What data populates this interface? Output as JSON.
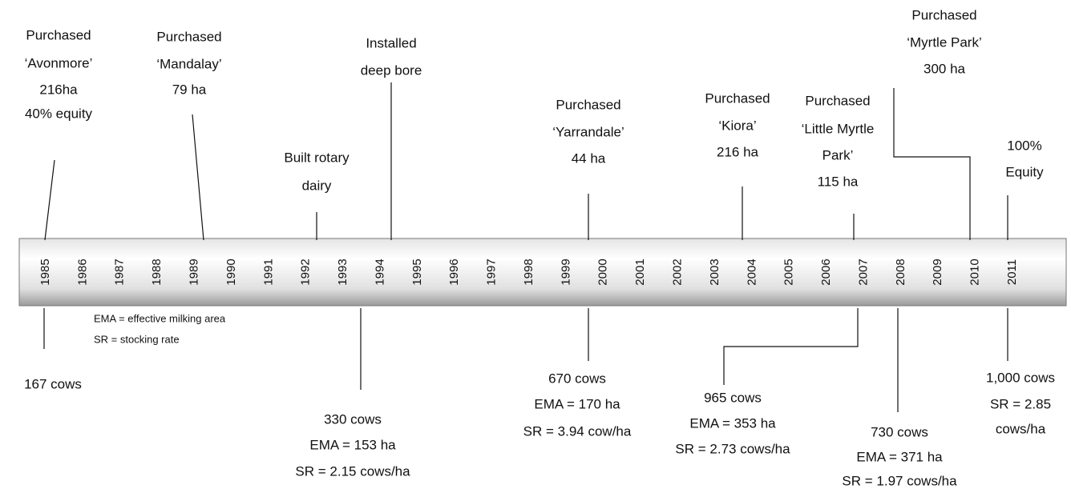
{
  "timeline": {
    "years": [
      1985,
      1986,
      1987,
      1988,
      1989,
      1990,
      1991,
      1992,
      1993,
      1994,
      1995,
      1996,
      1997,
      1998,
      1999,
      2000,
      2001,
      2002,
      2003,
      2004,
      2005,
      2006,
      2007,
      2008,
      2009,
      2010,
      2011
    ],
    "events_above": [
      {
        "lines": [
          "Purchased",
          "‘Avonmore’",
          "216ha",
          "40% equity"
        ]
      },
      {
        "lines": [
          "Purchased",
          "‘Mandalay’",
          "79 ha"
        ]
      },
      {
        "lines": [
          "Built rotary",
          "dairy"
        ]
      },
      {
        "lines": [
          "Installed",
          "deep bore"
        ]
      },
      {
        "lines": [
          "Purchased",
          "‘Yarrandale’",
          "44 ha"
        ]
      },
      {
        "lines": [
          "Purchased",
          "‘Kiora’",
          "216 ha"
        ]
      },
      {
        "lines": [
          "Purchased",
          "‘Little Myrtle",
          "Park’",
          "115 ha"
        ]
      },
      {
        "lines": [
          "Purchased",
          "‘Myrtle Park’",
          "300 ha"
        ]
      },
      {
        "lines": [
          "100%",
          "Equity"
        ]
      }
    ],
    "events_below": [
      {
        "lines": [
          "167 cows"
        ]
      },
      {
        "lines": [
          "330 cows",
          "EMA = 153 ha",
          "SR = 2.15 cows/ha"
        ]
      },
      {
        "lines": [
          "670 cows",
          "EMA = 170 ha",
          "SR = 3.94 cow/ha"
        ]
      },
      {
        "lines": [
          "965 cows",
          "EMA = 353 ha",
          "SR = 2.73 cows/ha"
        ]
      },
      {
        "lines": [
          "730 cows",
          "EMA = 371 ha",
          "SR = 1.97 cows/ha"
        ]
      },
      {
        "lines": [
          "1,000 cows",
          "SR = 2.85",
          "cows/ha"
        ]
      }
    ],
    "notes": [
      "EMA = effective milking area",
      "SR = stocking rate"
    ]
  }
}
